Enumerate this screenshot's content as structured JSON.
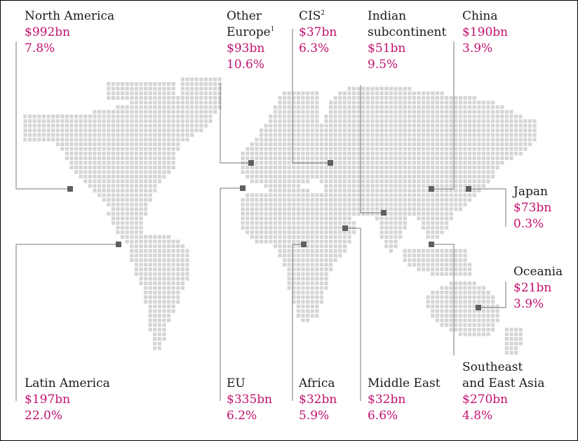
{
  "accent_color": "#c2126f",
  "regions": {
    "north_america": {
      "name": "North America",
      "value": "$992bn",
      "pct": "7.8%"
    },
    "other_europe": {
      "name_line1": "Other",
      "name_line2": "Europe",
      "note": "1",
      "value": "$93bn",
      "pct": "10.6%"
    },
    "cis": {
      "name": "CIS",
      "note": "2",
      "value": "$37bn",
      "pct": "6.3%"
    },
    "indian_subcontinent": {
      "name_line1": "Indian",
      "name_line2": "subcontinent",
      "value": "$51bn",
      "pct": "9.5%"
    },
    "china": {
      "name": "China",
      "value": "$190bn",
      "pct": "3.9%"
    },
    "japan": {
      "name": "Japan",
      "value": "$73bn",
      "pct": "0.3%"
    },
    "oceania": {
      "name": "Oceania",
      "value": "$21bn",
      "pct": "3.9%"
    },
    "latin_america": {
      "name": "Latin America",
      "value": "$197bn",
      "pct": "22.0%"
    },
    "eu": {
      "name": "EU",
      "value": "$335bn",
      "pct": "6.2%"
    },
    "africa": {
      "name": "Africa",
      "value": "$32bn",
      "pct": "5.9%"
    },
    "middle_east": {
      "name": "Middle East",
      "value": "$32bn",
      "pct": "6.6%"
    },
    "southeast_east_asia": {
      "name_line1": "Southeast",
      "name_line2": "and East Asia",
      "value": "$270bn",
      "pct": "4.8%"
    }
  }
}
